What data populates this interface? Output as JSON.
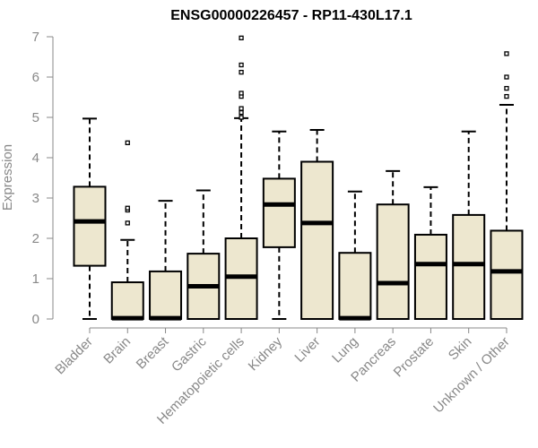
{
  "chart_data": {
    "type": "boxplot",
    "title": "ENSG00000226457 - RP11-430L17.1",
    "xlabel": "",
    "ylabel": "Expression",
    "ylim": [
      0,
      7
    ],
    "yticks": [
      0,
      1,
      2,
      3,
      4,
      5,
      6,
      7
    ],
    "colors": {
      "box_fill": "#ede7cf",
      "stroke": "#000000",
      "axis": "#888888"
    },
    "categories": [
      "Bladder",
      "Brain",
      "Breast",
      "Gastric",
      "Hematopoietic cells",
      "Kidney",
      "Liver",
      "Lung",
      "Pancreas",
      "Prostate",
      "Skin",
      "Unknown / Other"
    ],
    "boxes": [
      {
        "name": "Bladder",
        "min": 0.0,
        "q1": 1.32,
        "median": 2.42,
        "q3": 3.28,
        "max": 4.97,
        "outliers": []
      },
      {
        "name": "Brain",
        "min": 0.0,
        "q1": 0.0,
        "median": 0.02,
        "q3": 0.91,
        "max": 1.96,
        "outliers": [
          2.38,
          2.7,
          2.75,
          4.37
        ]
      },
      {
        "name": "Breast",
        "min": 0.0,
        "q1": 0.0,
        "median": 0.02,
        "q3": 1.18,
        "max": 2.93,
        "outliers": []
      },
      {
        "name": "Gastric",
        "min": 0.0,
        "q1": 0.0,
        "median": 0.81,
        "q3": 1.62,
        "max": 3.19,
        "outliers": []
      },
      {
        "name": "Hematopoietic cells",
        "min": 0.0,
        "q1": 0.0,
        "median": 1.05,
        "q3": 2.0,
        "max": 4.98,
        "outliers": [
          5.0,
          5.12,
          5.22,
          5.52,
          5.6,
          6.12,
          6.3,
          6.97
        ]
      },
      {
        "name": "Kidney",
        "min": 0.0,
        "q1": 1.78,
        "median": 2.84,
        "q3": 3.48,
        "max": 4.65,
        "outliers": []
      },
      {
        "name": "Liver",
        "min": 0.0,
        "q1": 0.0,
        "median": 2.38,
        "q3": 3.9,
        "max": 4.69,
        "outliers": []
      },
      {
        "name": "Lung",
        "min": 0.0,
        "q1": 0.0,
        "median": 0.02,
        "q3": 1.64,
        "max": 3.16,
        "outliers": []
      },
      {
        "name": "Pancreas",
        "min": 0.0,
        "q1": 0.0,
        "median": 0.89,
        "q3": 2.84,
        "max": 3.67,
        "outliers": []
      },
      {
        "name": "Prostate",
        "min": 0.0,
        "q1": 0.0,
        "median": 1.36,
        "q3": 2.09,
        "max": 3.27,
        "outliers": []
      },
      {
        "name": "Skin",
        "min": 0.0,
        "q1": 0.0,
        "median": 1.36,
        "q3": 2.58,
        "max": 4.65,
        "outliers": []
      },
      {
        "name": "Unknown / Other",
        "min": 0.0,
        "q1": 0.0,
        "median": 1.18,
        "q3": 2.19,
        "max": 5.31,
        "outliers": [
          5.52,
          5.72,
          6.0,
          6.58
        ]
      }
    ]
  }
}
